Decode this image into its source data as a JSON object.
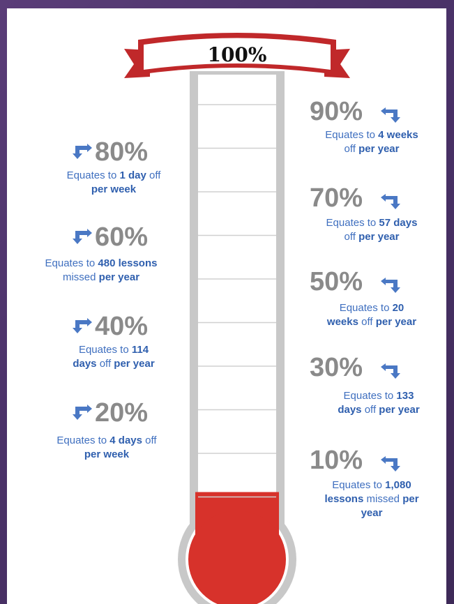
{
  "banner": {
    "label": "100%"
  },
  "fill_level": 0.1,
  "colors": {
    "mercury": "#d7322b",
    "tube": "#c8c8c8",
    "ribbon": "#c0282a",
    "percent": "#8a8a8a",
    "text": "#3f6fbf",
    "arrow": "#4a78c4"
  },
  "levels": [
    {
      "percent": "90%",
      "side": "right",
      "parts": [
        [
          "Equates to ",
          false
        ],
        [
          "4 weeks",
          true
        ],
        [
          "\noff ",
          false
        ],
        [
          "per year",
          true
        ]
      ]
    },
    {
      "percent": "80%",
      "side": "left",
      "parts": [
        [
          "Equates to ",
          false
        ],
        [
          "1 day",
          true
        ],
        [
          " off\n",
          false
        ],
        [
          "per week",
          true
        ]
      ]
    },
    {
      "percent": "70%",
      "side": "right",
      "parts": [
        [
          "Equates to ",
          false
        ],
        [
          "57 days",
          true
        ],
        [
          "\noff ",
          false
        ],
        [
          "per year",
          true
        ]
      ]
    },
    {
      "percent": "60%",
      "side": "left",
      "parts": [
        [
          "Equates to ",
          false
        ],
        [
          "480 lessons",
          true
        ],
        [
          "\nmissed ",
          false
        ],
        [
          "per year",
          true
        ]
      ]
    },
    {
      "percent": "50%",
      "side": "right",
      "parts": [
        [
          "Equates to ",
          false
        ],
        [
          "20\nweeks",
          true
        ],
        [
          " off ",
          false
        ],
        [
          "per year",
          true
        ]
      ]
    },
    {
      "percent": "40%",
      "side": "left",
      "parts": [
        [
          "Equates to ",
          false
        ],
        [
          "114\ndays",
          true
        ],
        [
          " off ",
          false
        ],
        [
          "per year",
          true
        ]
      ]
    },
    {
      "percent": "30%",
      "side": "right",
      "parts": [
        [
          "Equates to ",
          false
        ],
        [
          "133\ndays",
          true
        ],
        [
          " off ",
          false
        ],
        [
          "per year",
          true
        ]
      ]
    },
    {
      "percent": "20%",
      "side": "left",
      "parts": [
        [
          "Equates to ",
          false
        ],
        [
          "4 days",
          true
        ],
        [
          " off\n",
          false
        ],
        [
          "per week",
          true
        ]
      ]
    },
    {
      "percent": "10%",
      "side": "right",
      "parts": [
        [
          "Equates to ",
          false
        ],
        [
          "1,080\nlessons",
          true
        ],
        [
          " missed ",
          false
        ],
        [
          "per\nyear",
          true
        ]
      ]
    }
  ]
}
